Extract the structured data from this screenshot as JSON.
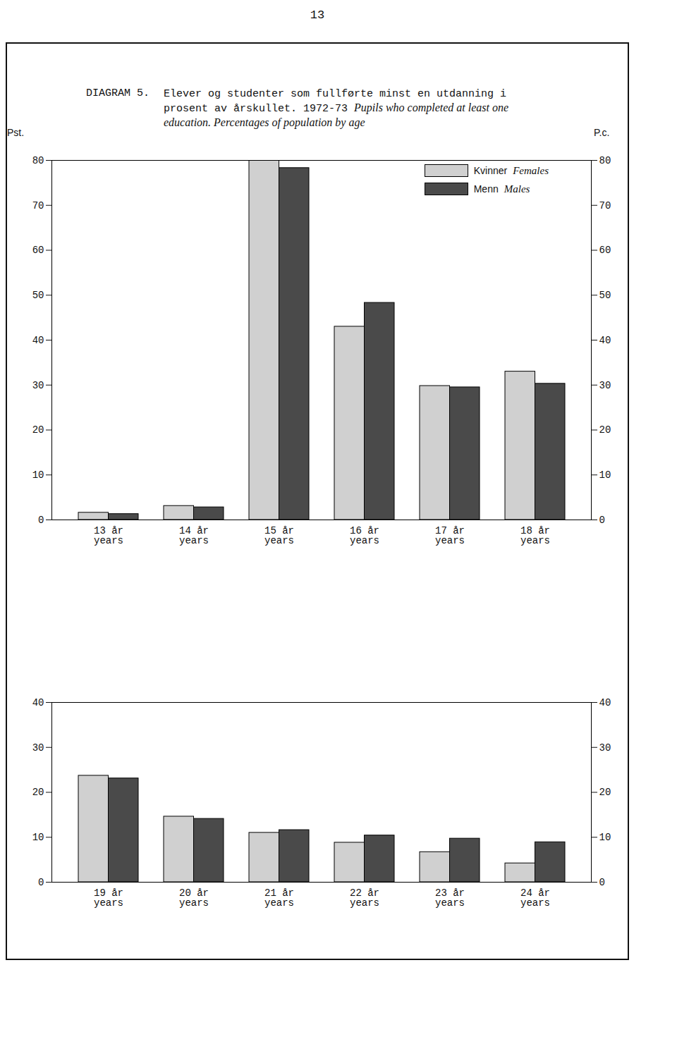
{
  "page_number": "13",
  "diagram_label": "DIAGRAM 5.",
  "title": "Elever og studenter som fullførte minst en utdanning i prosent av årskullet. 1972-73",
  "subtitle": "Pupils who completed at least one education. Percentages of population by age",
  "chart_data": [
    {
      "type": "bar",
      "ylabel": "Pst.",
      "ylabel_right": "P.c.",
      "categories": [
        "13 år",
        "14 år",
        "15 år",
        "16 år",
        "17 år",
        "18 år"
      ],
      "category_sublabel": "years",
      "series": [
        {
          "name": "Kvinner",
          "name_en": "Females",
          "color": "#d0d0d0",
          "values": [
            1.6,
            3.1,
            80,
            43,
            29.8,
            33
          ]
        },
        {
          "name": "Menn",
          "name_en": "Males",
          "color": "#4a4a4a",
          "values": [
            1.3,
            2.8,
            78.3,
            48.3,
            29.5,
            30.3
          ]
        }
      ],
      "ylim": [
        0,
        80
      ],
      "yticks": [
        0,
        10,
        20,
        30,
        40,
        50,
        60,
        70,
        80
      ],
      "legend": "upper right",
      "grid": false
    },
    {
      "type": "bar",
      "categories": [
        "19 år",
        "20 år",
        "21 år",
        "22 år",
        "23 år",
        "24 år"
      ],
      "category_sublabel": "years",
      "series": [
        {
          "name": "Kvinner",
          "name_en": "Females",
          "color": "#d0d0d0",
          "values": [
            23.7,
            14.6,
            11.0,
            8.8,
            6.7,
            4.2
          ]
        },
        {
          "name": "Menn",
          "name_en": "Males",
          "color": "#4a4a4a",
          "values": [
            23.1,
            14.1,
            11.6,
            10.4,
            9.7,
            8.9
          ]
        }
      ],
      "ylim": [
        0,
        40
      ],
      "yticks": [
        0,
        10,
        20,
        30,
        40
      ],
      "legend": false,
      "grid": false
    }
  ]
}
